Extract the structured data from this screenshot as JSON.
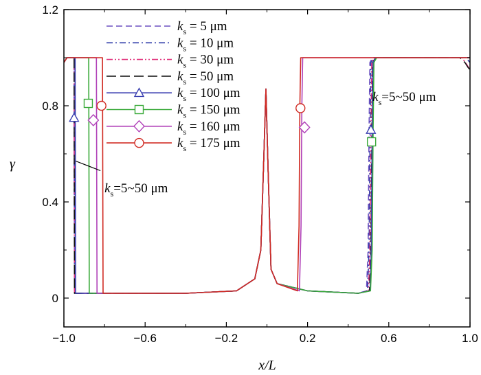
{
  "chart_data": {
    "type": "line",
    "title": "",
    "xlabel": "x/L",
    "ylabel": "γ",
    "xlim": [
      -1.0,
      1.0
    ],
    "ylim": [
      -0.12,
      1.2
    ],
    "x_ticks": [
      {
        "v": -1.0,
        "label": "−1.0"
      },
      {
        "v": -0.6,
        "label": "−0.6"
      },
      {
        "v": -0.2,
        "label": "−0.2"
      },
      {
        "v": 0.2,
        "label": "0.2"
      },
      {
        "v": 0.6,
        "label": "0.6"
      },
      {
        "v": 1.0,
        "label": "1.0"
      }
    ],
    "y_ticks": [
      {
        "v": 0,
        "label": "0"
      },
      {
        "v": 0.4,
        "label": "0.4"
      },
      {
        "v": 0.8,
        "label": "0.8"
      },
      {
        "v": 1.2,
        "label": "1.2"
      }
    ],
    "legend_position": "top-left",
    "series": [
      {
        "name": "k_s = 5 μm",
        "sym": "k",
        "sub": "s",
        "rest": " = 5 μm",
        "color": "#6a4fc0",
        "dash": "dash",
        "marker": "none",
        "points": [
          [
            -1.0,
            0.98
          ],
          [
            -0.985,
            1.0
          ],
          [
            -0.95,
            1.0
          ],
          [
            -0.948,
            0.02
          ],
          [
            -0.4,
            0.02
          ],
          [
            -0.15,
            0.03
          ],
          [
            -0.06,
            0.08
          ],
          [
            -0.03,
            0.2
          ],
          [
            -0.015,
            0.6
          ],
          [
            -0.005,
            0.87
          ],
          [
            0.005,
            0.55
          ],
          [
            0.02,
            0.12
          ],
          [
            0.05,
            0.06
          ],
          [
            0.2,
            0.03
          ],
          [
            0.45,
            0.02
          ],
          [
            0.49,
            0.03
          ],
          [
            0.498,
            0.2
          ],
          [
            0.503,
            0.7
          ],
          [
            0.507,
            0.98
          ],
          [
            0.52,
            1.0
          ],
          [
            0.98,
            1.0
          ],
          [
            1.0,
            0.98
          ]
        ]
      },
      {
        "name": "k_s = 10 μm",
        "sym": "k",
        "sub": "s",
        "rest": " = 10 μm",
        "color": "#2e3aa8",
        "dash": "dashdot",
        "marker": "none",
        "points": [
          [
            -1.0,
            0.98
          ],
          [
            -0.985,
            1.0
          ],
          [
            -0.95,
            1.0
          ],
          [
            -0.948,
            0.02
          ],
          [
            -0.4,
            0.02
          ],
          [
            -0.15,
            0.03
          ],
          [
            -0.06,
            0.08
          ],
          [
            -0.03,
            0.2
          ],
          [
            -0.015,
            0.6
          ],
          [
            -0.005,
            0.87
          ],
          [
            0.005,
            0.55
          ],
          [
            0.02,
            0.12
          ],
          [
            0.05,
            0.06
          ],
          [
            0.2,
            0.03
          ],
          [
            0.45,
            0.02
          ],
          [
            0.495,
            0.03
          ],
          [
            0.503,
            0.2
          ],
          [
            0.508,
            0.7
          ],
          [
            0.512,
            0.98
          ],
          [
            0.525,
            1.0
          ],
          [
            0.98,
            1.0
          ],
          [
            1.0,
            0.98
          ]
        ]
      },
      {
        "name": "k_s = 30 μm",
        "sym": "k",
        "sub": "s",
        "rest": " = 30 μm",
        "color": "#e0307a",
        "dash": "dashdotdot",
        "marker": "none",
        "points": [
          [
            -1.0,
            0.98
          ],
          [
            -0.985,
            1.0
          ],
          [
            -0.95,
            1.0
          ],
          [
            -0.948,
            0.02
          ],
          [
            -0.4,
            0.02
          ],
          [
            -0.15,
            0.03
          ],
          [
            -0.06,
            0.08
          ],
          [
            -0.03,
            0.2
          ],
          [
            -0.015,
            0.6
          ],
          [
            -0.005,
            0.87
          ],
          [
            0.005,
            0.55
          ],
          [
            0.02,
            0.12
          ],
          [
            0.05,
            0.06
          ],
          [
            0.2,
            0.03
          ],
          [
            0.45,
            0.02
          ],
          [
            0.5,
            0.03
          ],
          [
            0.507,
            0.2
          ],
          [
            0.512,
            0.7
          ],
          [
            0.516,
            0.98
          ],
          [
            0.53,
            1.0
          ],
          [
            0.96,
            1.0
          ],
          [
            0.985,
            0.97
          ],
          [
            1.0,
            0.95
          ]
        ]
      },
      {
        "name": "k_s = 50 μm",
        "sym": "k",
        "sub": "s",
        "rest": " = 50 μm",
        "color": "#111111",
        "dash": "longdash",
        "marker": "none",
        "points": [
          [
            -1.0,
            0.98
          ],
          [
            -0.985,
            1.0
          ],
          [
            -0.95,
            1.0
          ],
          [
            -0.948,
            0.02
          ],
          [
            -0.4,
            0.02
          ],
          [
            -0.15,
            0.03
          ],
          [
            -0.06,
            0.08
          ],
          [
            -0.03,
            0.2
          ],
          [
            -0.015,
            0.6
          ],
          [
            -0.005,
            0.87
          ],
          [
            0.005,
            0.55
          ],
          [
            0.02,
            0.12
          ],
          [
            0.05,
            0.06
          ],
          [
            0.2,
            0.03
          ],
          [
            0.45,
            0.02
          ],
          [
            0.505,
            0.03
          ],
          [
            0.512,
            0.2
          ],
          [
            0.517,
            0.7
          ],
          [
            0.52,
            0.98
          ],
          [
            0.535,
            1.0
          ],
          [
            0.95,
            1.0
          ],
          [
            0.975,
            0.98
          ],
          [
            0.99,
            0.96
          ],
          [
            1.0,
            0.95
          ]
        ]
      },
      {
        "name": "k_s = 100 μm",
        "sym": "k",
        "sub": "s",
        "rest": " = 100 μm",
        "color": "#3a3fb0",
        "dash": "solid",
        "marker": "triangle",
        "marker_at": [
          [
            -0.95,
            0.75
          ],
          [
            0.512,
            0.7
          ]
        ],
        "points": [
          [
            -1.0,
            0.98
          ],
          [
            -0.985,
            1.0
          ],
          [
            -0.945,
            1.0
          ],
          [
            -0.942,
            0.02
          ],
          [
            -0.4,
            0.02
          ],
          [
            -0.15,
            0.03
          ],
          [
            -0.06,
            0.08
          ],
          [
            -0.03,
            0.2
          ],
          [
            -0.015,
            0.6
          ],
          [
            -0.005,
            0.87
          ],
          [
            0.005,
            0.55
          ],
          [
            0.02,
            0.12
          ],
          [
            0.05,
            0.06
          ],
          [
            0.2,
            0.03
          ],
          [
            0.45,
            0.02
          ],
          [
            0.508,
            0.03
          ],
          [
            0.514,
            0.2
          ],
          [
            0.518,
            0.7
          ],
          [
            0.522,
            0.98
          ],
          [
            0.535,
            1.0
          ],
          [
            1.0,
            1.0
          ]
        ]
      },
      {
        "name": "k_s = 150 μm",
        "sym": "k",
        "sub": "s",
        "rest": " = 150 μm",
        "color": "#3aaa3a",
        "dash": "solid",
        "marker": "square",
        "marker_at": [
          [
            -0.88,
            0.81
          ],
          [
            0.515,
            0.65
          ]
        ],
        "points": [
          [
            -1.0,
            0.98
          ],
          [
            -0.985,
            1.0
          ],
          [
            -0.878,
            1.0
          ],
          [
            -0.875,
            0.02
          ],
          [
            -0.4,
            0.02
          ],
          [
            -0.15,
            0.03
          ],
          [
            -0.06,
            0.08
          ],
          [
            -0.03,
            0.2
          ],
          [
            -0.015,
            0.6
          ],
          [
            -0.005,
            0.87
          ],
          [
            0.005,
            0.55
          ],
          [
            0.02,
            0.12
          ],
          [
            0.05,
            0.06
          ],
          [
            0.2,
            0.03
          ],
          [
            0.45,
            0.02
          ],
          [
            0.51,
            0.03
          ],
          [
            0.518,
            0.2
          ],
          [
            0.523,
            0.7
          ],
          [
            0.527,
            0.98
          ],
          [
            0.54,
            1.0
          ],
          [
            1.0,
            1.0
          ]
        ]
      },
      {
        "name": "k_s = 160 μm",
        "sym": "k",
        "sub": "s",
        "rest": " = 160 μm",
        "color": "#b040b8",
        "dash": "solid",
        "marker": "diamond",
        "marker_at": [
          [
            -0.855,
            0.74
          ],
          [
            0.185,
            0.71
          ]
        ],
        "points": [
          [
            -1.0,
            0.98
          ],
          [
            -0.985,
            1.0
          ],
          [
            -0.84,
            1.0
          ],
          [
            -0.837,
            0.02
          ],
          [
            -0.4,
            0.02
          ],
          [
            -0.15,
            0.03
          ],
          [
            -0.06,
            0.08
          ],
          [
            -0.03,
            0.2
          ],
          [
            -0.015,
            0.6
          ],
          [
            -0.005,
            0.87
          ],
          [
            0.005,
            0.55
          ],
          [
            0.02,
            0.12
          ],
          [
            0.05,
            0.06
          ],
          [
            0.16,
            0.03
          ],
          [
            0.168,
            0.3
          ],
          [
            0.172,
            0.8
          ],
          [
            0.176,
            1.0
          ],
          [
            1.0,
            1.0
          ]
        ]
      },
      {
        "name": "k_s = 175 μm",
        "sym": "k",
        "sub": "s",
        "rest": " = 175 μm",
        "color": "#d02a22",
        "dash": "solid",
        "marker": "circle",
        "marker_at": [
          [
            -0.815,
            0.8
          ],
          [
            0.165,
            0.79
          ]
        ],
        "points": [
          [
            -1.0,
            0.98
          ],
          [
            -0.985,
            1.0
          ],
          [
            -0.81,
            1.0
          ],
          [
            -0.807,
            0.02
          ],
          [
            -0.4,
            0.02
          ],
          [
            -0.15,
            0.03
          ],
          [
            -0.06,
            0.08
          ],
          [
            -0.03,
            0.2
          ],
          [
            -0.015,
            0.6
          ],
          [
            -0.005,
            0.87
          ],
          [
            0.005,
            0.55
          ],
          [
            0.02,
            0.12
          ],
          [
            0.05,
            0.06
          ],
          [
            0.15,
            0.03
          ],
          [
            0.158,
            0.3
          ],
          [
            0.162,
            0.8
          ],
          [
            0.166,
            1.0
          ],
          [
            1.0,
            1.0
          ]
        ]
      }
    ],
    "annotations": [
      {
        "id": "left",
        "sym": "k",
        "sub": "s",
        "rest": "=5~50 μm",
        "arrow_from": [
          -0.82,
          0.53
        ],
        "arrow_to": [
          -0.942,
          0.57
        ],
        "text_at": [
          -0.8,
          0.44
        ]
      },
      {
        "id": "right",
        "sym": "k",
        "sub": "s",
        "rest": "=5~50 μm",
        "text_at": [
          0.52,
          0.82
        ]
      }
    ]
  }
}
